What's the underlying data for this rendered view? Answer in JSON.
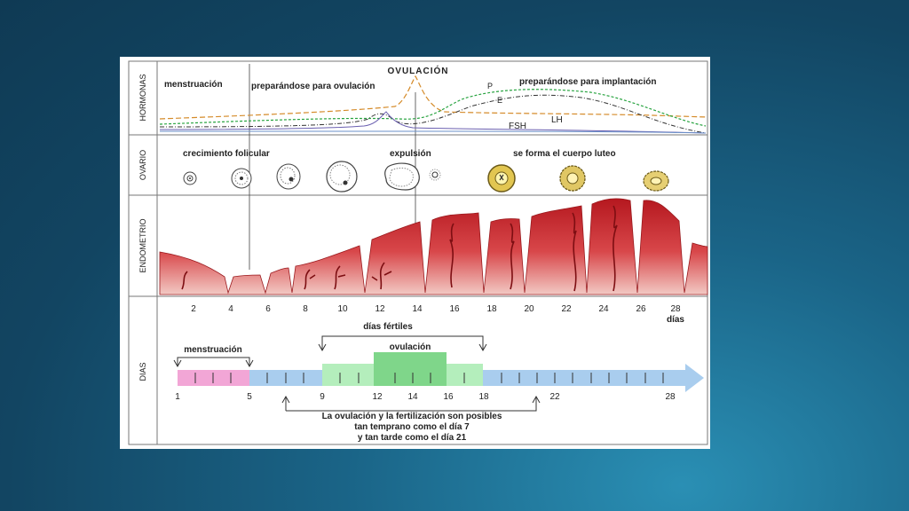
{
  "panels": {
    "hormonas": "HORMONAS",
    "ovario": "OVARIO",
    "endometrio": "ENDOMETRIO",
    "dias": "DIAS"
  },
  "hormones": {
    "menstruacion": "menstruación",
    "preparando_ovulacion": "preparándose para ovulación",
    "ovulacion": "OVULACIÓN",
    "preparando_implantacion": "preparándose para implantación",
    "p": "P",
    "e": "E",
    "lh": "LH",
    "fsh": "FSH"
  },
  "ovary": {
    "crecimiento": "crecimiento folicular",
    "expulsion": "expulsión",
    "cuerpo_luteo": "se forma el cuerpo luteo"
  },
  "day_axis": {
    "ticks": [
      "2",
      "4",
      "6",
      "8",
      "10",
      "12",
      "14",
      "16",
      "18",
      "20",
      "22",
      "24",
      "26",
      "28"
    ],
    "unit": "días"
  },
  "timeline": {
    "menstruacion": "menstruación",
    "dias_fertiles": "días fértiles",
    "ovulacion": "ovulación",
    "labels": [
      "1",
      "5",
      "9",
      "12",
      "14",
      "16",
      "18",
      "22",
      "28"
    ],
    "note_line1": "La ovulación y la fertilización son posibles",
    "note_line2": "tan temprano como el día 7",
    "note_line3": "y tan tarde como el día 21"
  },
  "colors": {
    "menstruation_segment": "#f2a6d6",
    "preparation_segment": "#a9cdee",
    "fertile_window": "#b4eebc",
    "ovulation_peak": "#7fd68a",
    "endometrium": "#c0262b"
  }
}
